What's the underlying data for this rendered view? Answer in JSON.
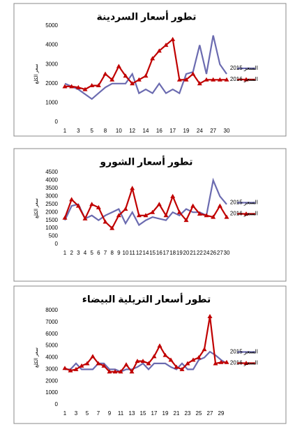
{
  "chart_data": [
    {
      "type": "line",
      "title": "تطور أسعار السردينة",
      "y_label": "سعر الكلغ",
      "categories": [
        "1",
        null,
        "3",
        null,
        "5",
        null,
        "8",
        null,
        "10",
        null,
        "12",
        null,
        "14",
        null,
        "16",
        null,
        "17",
        null,
        "19",
        null,
        "24",
        null,
        "27",
        null,
        "30"
      ],
      "ylim": [
        0,
        5000
      ],
      "yticks": [
        0,
        1000,
        2000,
        3000,
        4000,
        5000
      ],
      "grid": false,
      "legend": "right",
      "series": [
        {
          "name": "السعر 2015",
          "color": "#6b6bb0",
          "marker": "none",
          "values": [
            2000,
            1850,
            1700,
            1450,
            1200,
            1500,
            1800,
            2000,
            2000,
            2000,
            2500,
            1500,
            1700,
            1500,
            2000,
            1500,
            1700,
            1500,
            2500,
            2600,
            4000,
            2500,
            4500,
            3000,
            2500
          ]
        },
        {
          "name": "السعر 2016",
          "color": "#c00000",
          "marker": "triangle",
          "values": [
            1850,
            1850,
            1800,
            1700,
            1900,
            1900,
            2500,
            2200,
            2900,
            2400,
            2000,
            2200,
            2400,
            3300,
            3700,
            4000,
            4300,
            2200,
            2200,
            2500,
            2000,
            2200,
            2200,
            2200,
            2200
          ]
        }
      ]
    },
    {
      "type": "line",
      "title": "تطور أسعار الشورو",
      "y_label": "سعر الكلغ",
      "categories": [
        "1",
        "2",
        "3",
        "4",
        "5",
        "6",
        "7",
        "8",
        "9",
        "10",
        "11",
        "12",
        "14",
        "15",
        "16",
        "17",
        "18",
        "19",
        "20",
        "21",
        "22",
        "24",
        "26",
        "27",
        "30"
      ],
      "ylim": [
        0,
        4500
      ],
      "yticks": [
        0,
        500,
        1000,
        1500,
        2000,
        2500,
        3000,
        3500,
        4000,
        4500
      ],
      "grid": false,
      "legend": "right",
      "series": [
        {
          "name": "السعر 2015",
          "color": "#6b6bb0",
          "marker": "none",
          "values": [
            1500,
            2400,
            2500,
            1600,
            1800,
            1500,
            1800,
            2000,
            2200,
            1300,
            2000,
            1200,
            1500,
            1700,
            1600,
            1500,
            2000,
            1800,
            2200,
            2000,
            2000,
            1800,
            4000,
            3000,
            2500
          ]
        },
        {
          "name": "السعر 2016",
          "color": "#c00000",
          "marker": "triangle",
          "values": [
            1650,
            2800,
            2400,
            1600,
            2500,
            2300,
            1400,
            1000,
            1800,
            2200,
            3500,
            1800,
            1800,
            2000,
            2500,
            1800,
            3000,
            2000,
            1500,
            2400,
            1900,
            1800,
            1700,
            2400,
            1700
          ]
        }
      ]
    },
    {
      "type": "line",
      "title": "تطور أسعار التريلية البيضاء",
      "y_label": "سعر الكلغ",
      "categories": [
        "1",
        null,
        "3",
        null,
        "5",
        null,
        "7",
        null,
        "9",
        null,
        "11",
        null,
        "13",
        null,
        "15",
        null,
        "17",
        null,
        "19",
        null,
        "21",
        null,
        "23",
        null,
        "25",
        null,
        "27",
        null,
        "29",
        null
      ],
      "ylim": [
        0,
        8000
      ],
      "yticks": [
        0,
        1000,
        2000,
        3000,
        4000,
        5000,
        6000,
        7000,
        8000
      ],
      "grid": false,
      "legend": "right",
      "series": [
        {
          "name": "السعر 2015",
          "color": "#6b6bb0",
          "marker": "none",
          "values": [
            3000,
            3000,
            3500,
            3000,
            3000,
            3000,
            3500,
            3500,
            3000,
            3000,
            2800,
            3000,
            3000,
            3200,
            3500,
            3000,
            3500,
            3500,
            3500,
            3200,
            3000,
            3500,
            3000,
            3000,
            3800,
            4000,
            4500,
            4200,
            3800,
            3500
          ]
        },
        {
          "name": "السعر 2016",
          "color": "#c00000",
          "marker": "triangle",
          "values": [
            3100,
            2900,
            3000,
            3300,
            3500,
            4100,
            3500,
            3300,
            2800,
            2800,
            2800,
            3400,
            2800,
            3700,
            3700,
            3500,
            4100,
            5000,
            4200,
            3800,
            3200,
            3000,
            3500,
            3800,
            4000,
            4700,
            7500,
            3500,
            3600,
            3600
          ]
        }
      ]
    }
  ]
}
